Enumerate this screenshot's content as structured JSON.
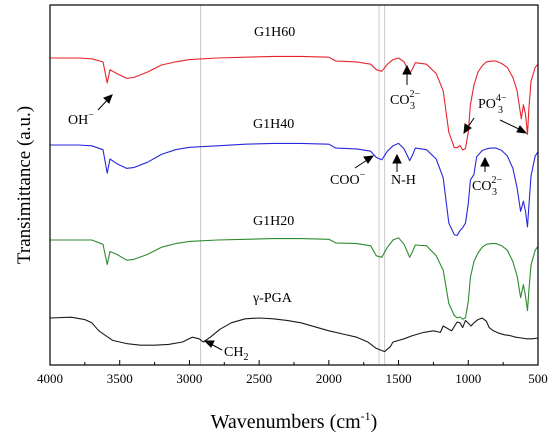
{
  "chart_data": {
    "type": "line",
    "xlabel": "Wavenumbers (cm",
    "xlabel_sup": "-1",
    "xlabel_end": ")",
    "ylabel": "Transimittance (a.u.)",
    "xlim": [
      4000,
      500
    ],
    "x_reversed": true,
    "x_ticks": [
      "4000",
      "3500",
      "3000",
      "2500",
      "2000",
      "1500",
      "1000",
      "500"
    ],
    "y_ticks_shown": false,
    "reference_lines": [
      2920,
      1640,
      1600
    ],
    "series": [
      {
        "name": "G1H60",
        "color": "#e8232b",
        "points": [
          [
            4000,
            0.0
          ],
          [
            3800,
            0.0
          ],
          [
            3700,
            0.01
          ],
          [
            3620,
            0.05
          ],
          [
            3590,
            0.32
          ],
          [
            3570,
            0.15
          ],
          [
            3520,
            0.2
          ],
          [
            3450,
            0.26
          ],
          [
            3400,
            0.25
          ],
          [
            3300,
            0.18
          ],
          [
            3200,
            0.09
          ],
          [
            3100,
            0.05
          ],
          [
            3000,
            0.02
          ],
          [
            2800,
            0.0
          ],
          [
            2600,
            -0.01
          ],
          [
            2400,
            -0.02
          ],
          [
            2200,
            -0.02
          ],
          [
            2000,
            -0.01
          ],
          [
            1950,
            0.04
          ],
          [
            1800,
            0.05
          ],
          [
            1700,
            0.08
          ],
          [
            1660,
            0.15
          ],
          [
            1620,
            0.17
          ],
          [
            1580,
            0.08
          ],
          [
            1540,
            0.02
          ],
          [
            1500,
            0.0
          ],
          [
            1460,
            0.05
          ],
          [
            1420,
            0.2
          ],
          [
            1400,
            0.14
          ],
          [
            1380,
            0.06
          ],
          [
            1300,
            0.08
          ],
          [
            1230,
            0.2
          ],
          [
            1180,
            0.42
          ],
          [
            1140,
            0.95
          ],
          [
            1100,
            1.15
          ],
          [
            1080,
            1.15
          ],
          [
            1060,
            1.12
          ],
          [
            1040,
            1.18
          ],
          [
            1020,
            1.16
          ],
          [
            1000,
            0.95
          ],
          [
            985,
            0.6
          ],
          [
            960,
            0.35
          ],
          [
            930,
            0.18
          ],
          [
            900,
            0.1
          ],
          [
            870,
            0.05
          ],
          [
            840,
            0.04
          ],
          [
            800,
            0.04
          ],
          [
            760,
            0.07
          ],
          [
            720,
            0.12
          ],
          [
            680,
            0.25
          ],
          [
            650,
            0.42
          ],
          [
            620,
            0.78
          ],
          [
            605,
            0.6
          ],
          [
            590,
            0.72
          ],
          [
            575,
            0.98
          ],
          [
            565,
            0.65
          ],
          [
            550,
            0.3
          ],
          [
            520,
            0.12
          ],
          [
            500,
            0.08
          ]
        ]
      },
      {
        "name": "G1H40",
        "color": "#2828dc",
        "points": [
          [
            4000,
            0.0
          ],
          [
            3800,
            0.0
          ],
          [
            3700,
            0.01
          ],
          [
            3620,
            0.06
          ],
          [
            3590,
            0.36
          ],
          [
            3570,
            0.18
          ],
          [
            3520,
            0.24
          ],
          [
            3450,
            0.3
          ],
          [
            3400,
            0.29
          ],
          [
            3300,
            0.22
          ],
          [
            3200,
            0.12
          ],
          [
            3100,
            0.06
          ],
          [
            3000,
            0.03
          ],
          [
            2800,
            0.01
          ],
          [
            2600,
            -0.01
          ],
          [
            2400,
            -0.02
          ],
          [
            2200,
            -0.02
          ],
          [
            2000,
            -0.01
          ],
          [
            1950,
            0.04
          ],
          [
            1800,
            0.05
          ],
          [
            1700,
            0.08
          ],
          [
            1660,
            0.16
          ],
          [
            1620,
            0.19
          ],
          [
            1580,
            0.08
          ],
          [
            1540,
            0.01
          ],
          [
            1500,
            -0.02
          ],
          [
            1460,
            0.05
          ],
          [
            1420,
            0.2
          ],
          [
            1400,
            0.13
          ],
          [
            1380,
            0.04
          ],
          [
            1300,
            0.06
          ],
          [
            1230,
            0.18
          ],
          [
            1180,
            0.42
          ],
          [
            1140,
            1.0
          ],
          [
            1100,
            1.15
          ],
          [
            1080,
            1.16
          ],
          [
            1060,
            1.1
          ],
          [
            1040,
            1.06
          ],
          [
            1020,
            1.0
          ],
          [
            1000,
            0.75
          ],
          [
            985,
            0.45
          ],
          [
            960,
            0.38
          ],
          [
            940,
            0.15
          ],
          [
            900,
            0.07
          ],
          [
            870,
            0.05
          ],
          [
            840,
            0.04
          ],
          [
            800,
            0.04
          ],
          [
            760,
            0.07
          ],
          [
            720,
            0.14
          ],
          [
            680,
            0.3
          ],
          [
            650,
            0.55
          ],
          [
            625,
            0.85
          ],
          [
            605,
            0.72
          ],
          [
            590,
            0.85
          ],
          [
            575,
            1.05
          ],
          [
            565,
            0.78
          ],
          [
            550,
            0.4
          ],
          [
            520,
            0.14
          ],
          [
            500,
            0.09
          ]
        ]
      },
      {
        "name": "G1H20",
        "color": "#2e8b2e",
        "points": [
          [
            4000,
            0.0
          ],
          [
            3800,
            0.0
          ],
          [
            3700,
            0.0
          ],
          [
            3620,
            0.06
          ],
          [
            3590,
            0.34
          ],
          [
            3570,
            0.16
          ],
          [
            3520,
            0.2
          ],
          [
            3450,
            0.28
          ],
          [
            3400,
            0.27
          ],
          [
            3300,
            0.2
          ],
          [
            3200,
            0.1
          ],
          [
            3100,
            0.05
          ],
          [
            3000,
            0.02
          ],
          [
            2800,
            0.0
          ],
          [
            2600,
            -0.01
          ],
          [
            2400,
            -0.02
          ],
          [
            2200,
            -0.02
          ],
          [
            2000,
            -0.01
          ],
          [
            1950,
            0.04
          ],
          [
            1800,
            0.05
          ],
          [
            1700,
            0.08
          ],
          [
            1660,
            0.22
          ],
          [
            1620,
            0.24
          ],
          [
            1580,
            0.1
          ],
          [
            1540,
            0.0
          ],
          [
            1500,
            -0.03
          ],
          [
            1460,
            0.06
          ],
          [
            1420,
            0.24
          ],
          [
            1400,
            0.16
          ],
          [
            1380,
            0.07
          ],
          [
            1300,
            0.08
          ],
          [
            1230,
            0.22
          ],
          [
            1180,
            0.42
          ],
          [
            1140,
            0.88
          ],
          [
            1100,
            1.05
          ],
          [
            1080,
            1.08
          ],
          [
            1060,
            1.07
          ],
          [
            1040,
            1.1
          ],
          [
            1020,
            1.08
          ],
          [
            1000,
            0.85
          ],
          [
            985,
            0.52
          ],
          [
            960,
            0.3
          ],
          [
            930,
            0.18
          ],
          [
            900,
            0.1
          ],
          [
            870,
            0.06
          ],
          [
            840,
            0.05
          ],
          [
            800,
            0.05
          ],
          [
            760,
            0.08
          ],
          [
            720,
            0.14
          ],
          [
            680,
            0.3
          ],
          [
            650,
            0.5
          ],
          [
            625,
            0.8
          ],
          [
            605,
            0.62
          ],
          [
            590,
            0.78
          ],
          [
            575,
            0.98
          ],
          [
            565,
            0.7
          ],
          [
            550,
            0.35
          ],
          [
            520,
            0.14
          ],
          [
            500,
            0.09
          ]
        ]
      },
      {
        "name": "γ-PGA",
        "color": "#1a1a1a",
        "points": [
          [
            4000,
            0.0
          ],
          [
            3850,
            -0.01
          ],
          [
            3750,
            0.02
          ],
          [
            3700,
            0.06
          ],
          [
            3650,
            0.16
          ],
          [
            3550,
            0.28
          ],
          [
            3450,
            0.32
          ],
          [
            3350,
            0.34
          ],
          [
            3250,
            0.34
          ],
          [
            3150,
            0.33
          ],
          [
            3050,
            0.3
          ],
          [
            2980,
            0.24
          ],
          [
            2930,
            0.26
          ],
          [
            2900,
            0.3
          ],
          [
            2850,
            0.24
          ],
          [
            2780,
            0.14
          ],
          [
            2700,
            0.06
          ],
          [
            2600,
            0.01
          ],
          [
            2500,
            0.0
          ],
          [
            2400,
            0.01
          ],
          [
            2300,
            0.03
          ],
          [
            2200,
            0.06
          ],
          [
            2100,
            0.11
          ],
          [
            2000,
            0.16
          ],
          [
            1900,
            0.2
          ],
          [
            1800,
            0.24
          ],
          [
            1720,
            0.3
          ],
          [
            1660,
            0.38
          ],
          [
            1600,
            0.42
          ],
          [
            1560,
            0.36
          ],
          [
            1540,
            0.3
          ],
          [
            1460,
            0.26
          ],
          [
            1400,
            0.22
          ],
          [
            1320,
            0.18
          ],
          [
            1250,
            0.16
          ],
          [
            1200,
            0.18
          ],
          [
            1180,
            0.1
          ],
          [
            1120,
            0.16
          ],
          [
            1080,
            0.05
          ],
          [
            1060,
            0.06
          ],
          [
            1040,
            0.12
          ],
          [
            1020,
            0.03
          ],
          [
            980,
            0.1
          ],
          [
            960,
            0.06
          ],
          [
            930,
            0.02
          ],
          [
            900,
            0.0
          ],
          [
            870,
            0.04
          ],
          [
            850,
            0.12
          ],
          [
            820,
            0.16
          ],
          [
            780,
            0.19
          ],
          [
            740,
            0.21
          ],
          [
            700,
            0.22
          ],
          [
            660,
            0.24
          ],
          [
            620,
            0.25
          ],
          [
            580,
            0.26
          ],
          [
            540,
            0.26
          ],
          [
            500,
            0.25
          ]
        ]
      }
    ],
    "annotations": [
      {
        "id": "oh",
        "text": "OH",
        "sup": "−"
      },
      {
        "id": "co3-a",
        "text": "CO",
        "sub": "3",
        "sup": "2−"
      },
      {
        "id": "po4",
        "text": "PO",
        "sub": "3",
        "sup": "4−"
      },
      {
        "id": "coo",
        "text": "COO",
        "sup": "−"
      },
      {
        "id": "nh",
        "text": "N-H"
      },
      {
        "id": "co3-b",
        "text": "CO",
        "sub": "3",
        "sup": "2−"
      },
      {
        "id": "ch2",
        "text": "CH",
        "sub": "2"
      }
    ]
  }
}
